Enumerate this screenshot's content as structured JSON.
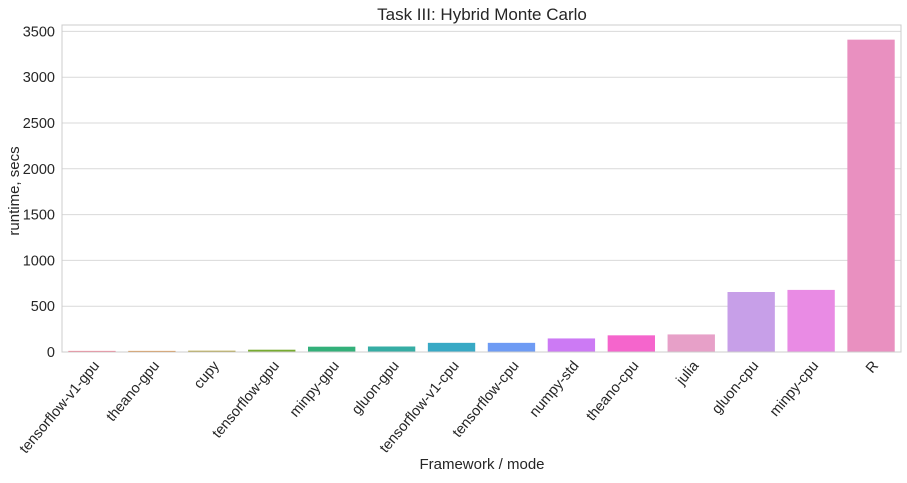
{
  "chart_data": {
    "type": "bar",
    "title": "Task III: Hybrid Monte Carlo",
    "xlabel": "Framework / mode",
    "ylabel": "runtime, secs",
    "ylim": [
      0,
      3500
    ],
    "yticks": [
      0,
      500,
      1000,
      1500,
      2000,
      2500,
      3000,
      3500
    ],
    "grid": true,
    "categories": [
      "tensorflow-v1-gpu",
      "theano-gpu",
      "cupy",
      "tensorflow-gpu",
      "minpy-gpu",
      "gluon-gpu",
      "tensorflow-v1-cpu",
      "tensorflow-cpu",
      "numpy-std",
      "theano-cpu",
      "julia",
      "gluon-cpu",
      "minpy-cpu",
      "R"
    ],
    "values": [
      12,
      12,
      14,
      25,
      58,
      60,
      100,
      100,
      148,
      182,
      192,
      655,
      678,
      3410
    ],
    "colors": [
      "#f77189",
      "#dc8932",
      "#ae9d31",
      "#77ab31",
      "#33b07a",
      "#36ada4",
      "#38a9c5",
      "#6e9bf4",
      "#cc7af4",
      "#f565cc",
      "#e7a0c8",
      "#c79fe8",
      "#e98be4",
      "#e990c0"
    ]
  }
}
